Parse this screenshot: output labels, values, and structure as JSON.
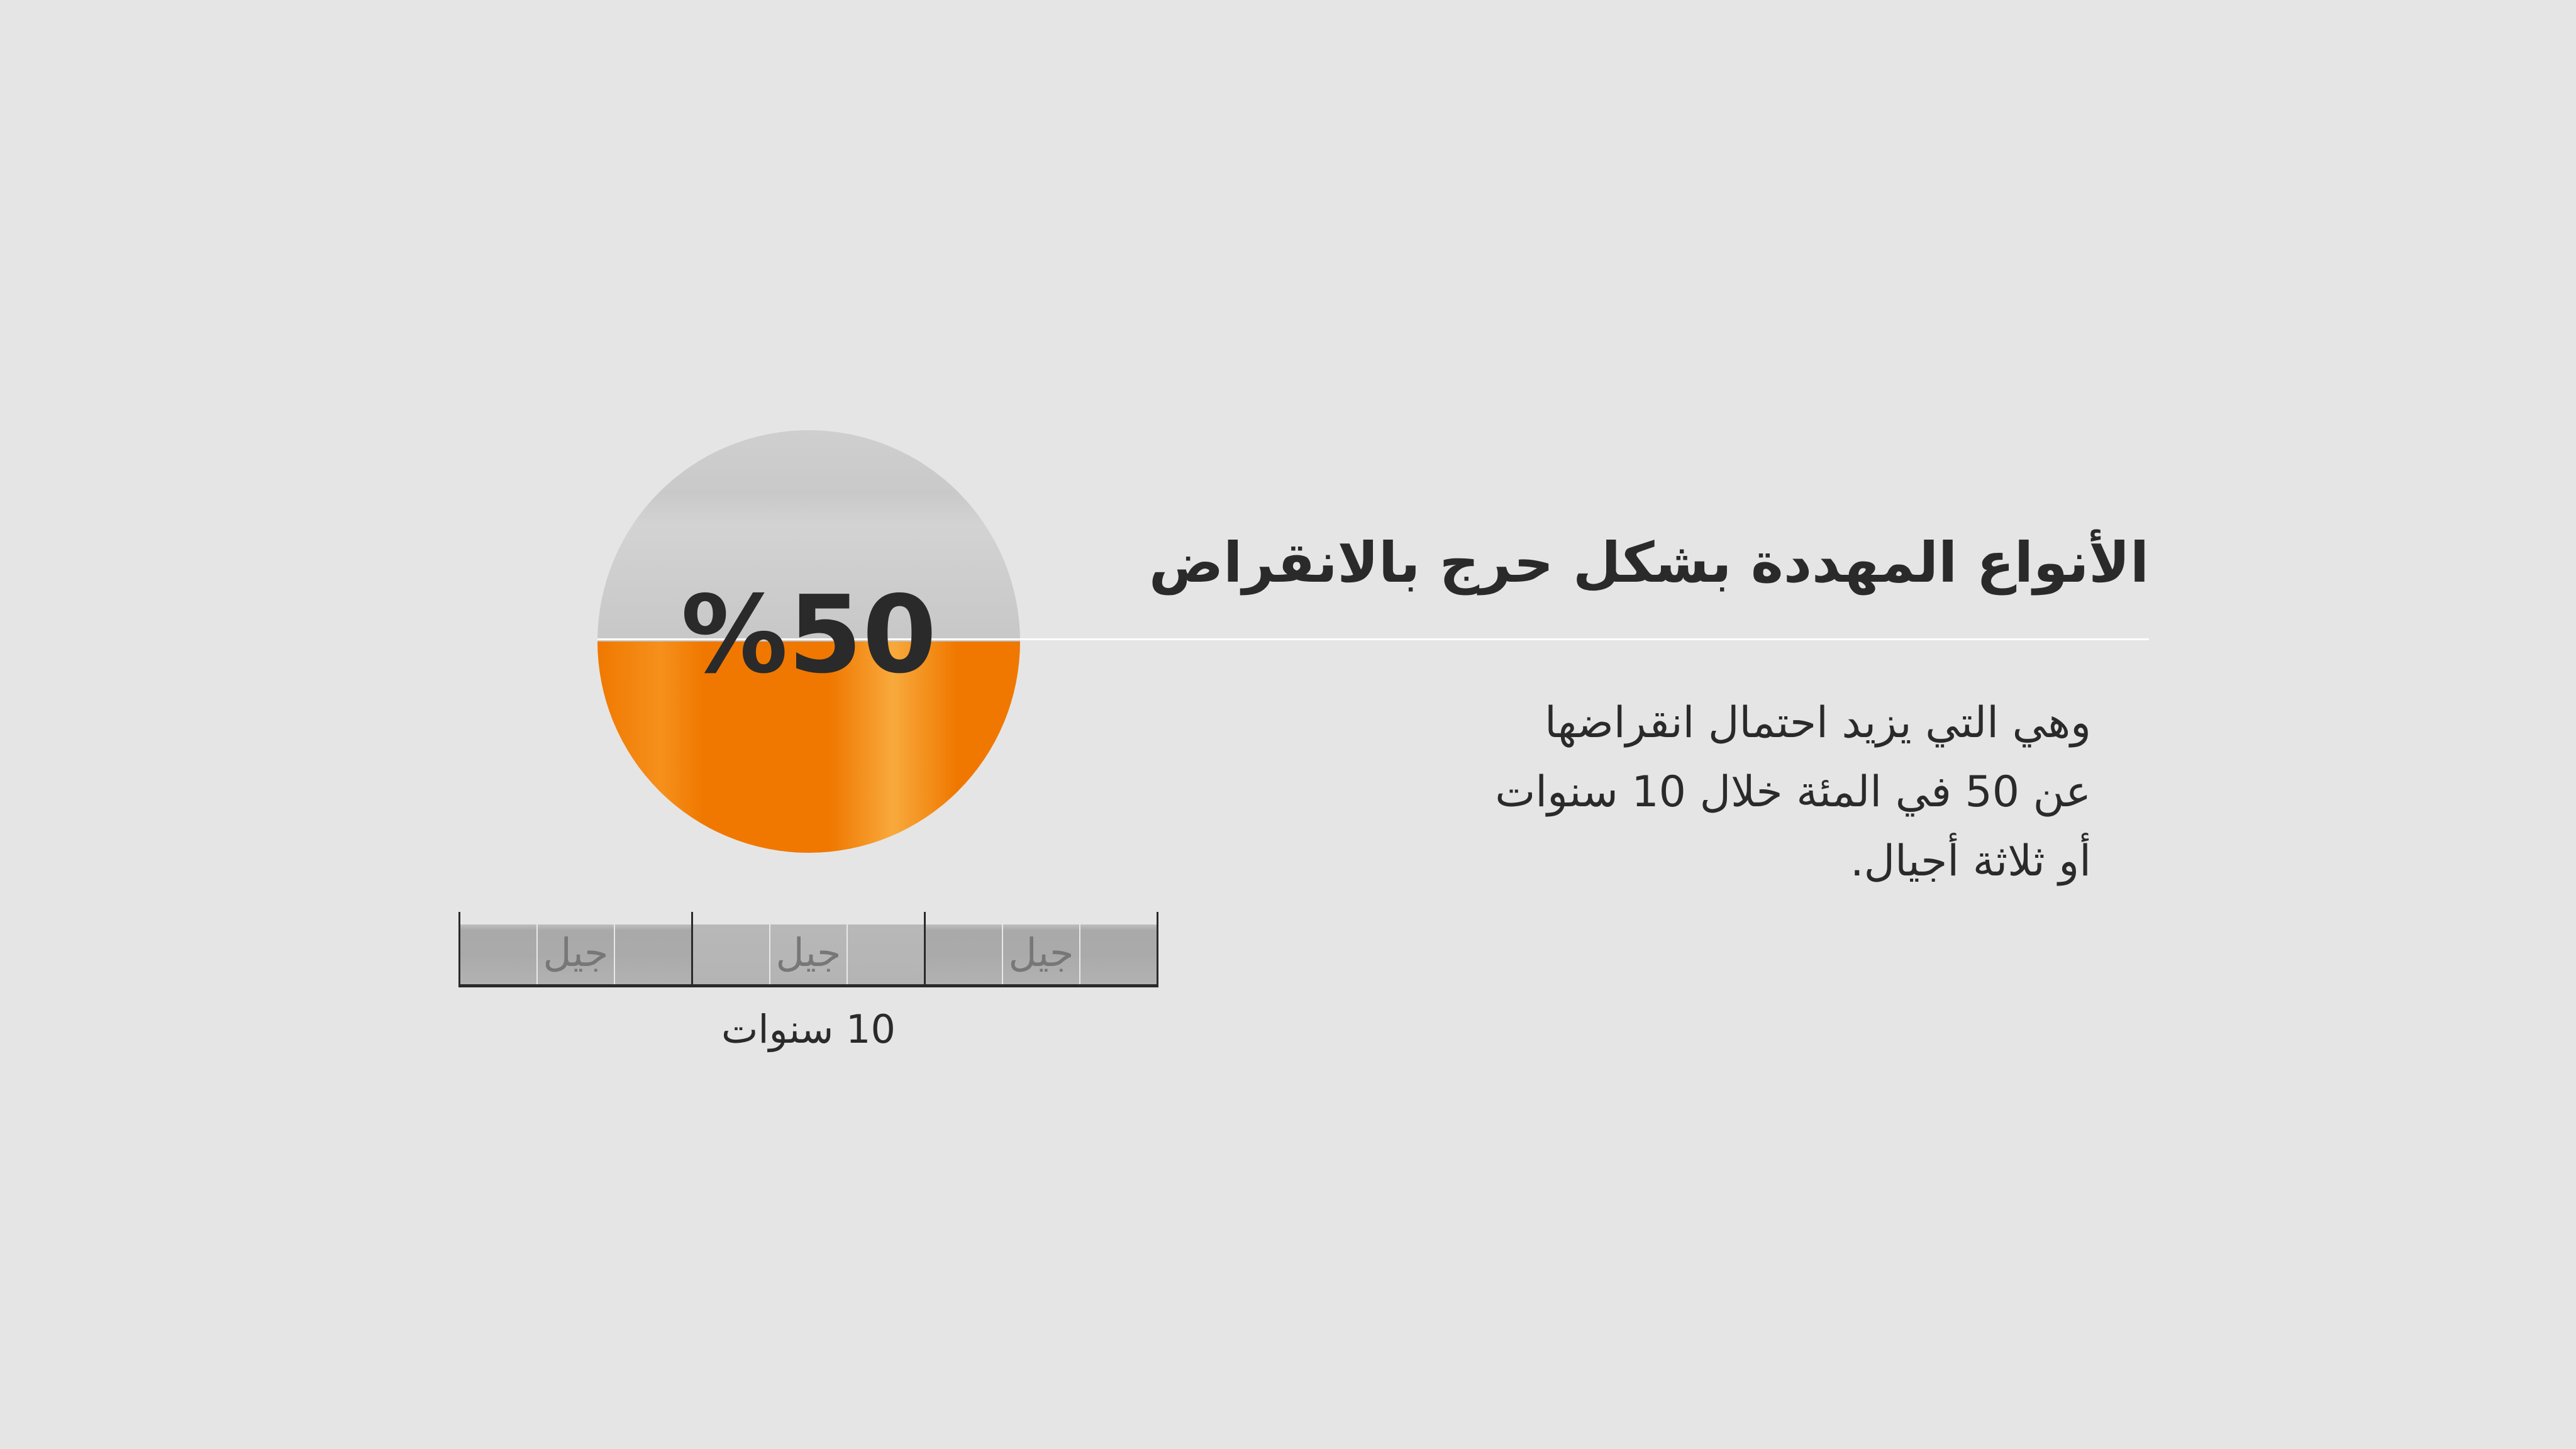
{
  "stat": {
    "value_text": "%50",
    "percent": 50,
    "colors": {
      "filled": "#f07800",
      "empty": "#c9c9c9"
    }
  },
  "title": "الأنواع المهددة بشكل حرج بالانقراض",
  "description": [
    "وهي التي يزيد احتمال انقراضها",
    "عن 50 في المئة خلال 10 سنوات",
    "أو ثلاثة أجيال."
  ],
  "timeline": {
    "generations": [
      "جيل",
      "جيل",
      "جيل"
    ],
    "span_label": "10 سنوات"
  },
  "colors": {
    "background": "#e5e5e5",
    "text": "#2a2a2a",
    "accent": "#f07800"
  }
}
